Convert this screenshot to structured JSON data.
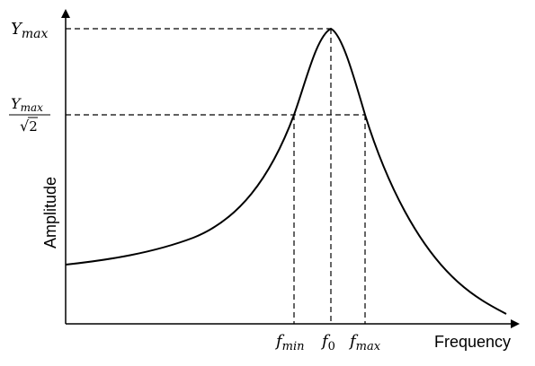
{
  "diagram": {
    "y_axis_label": "Amplitude",
    "x_axis_label": "Frequency",
    "y_labels": {
      "ymax": {
        "main": "Y",
        "sub": "max"
      },
      "half_power": {
        "numerator": {
          "main": "Y",
          "sub": "max"
        },
        "denominator": {
          "root": "√",
          "value": "2"
        }
      }
    },
    "x_labels": {
      "fmin": {
        "main": "f",
        "sub": "min"
      },
      "f0": {
        "main": "f",
        "sub": "0"
      },
      "fmax": {
        "main": "f",
        "sub": "max"
      }
    },
    "curve": {
      "shape": "resonance-peak",
      "baseline_level": 0.2,
      "peak_level": 1.0,
      "half_power_level": 0.707,
      "end_level": 0.035
    }
  }
}
